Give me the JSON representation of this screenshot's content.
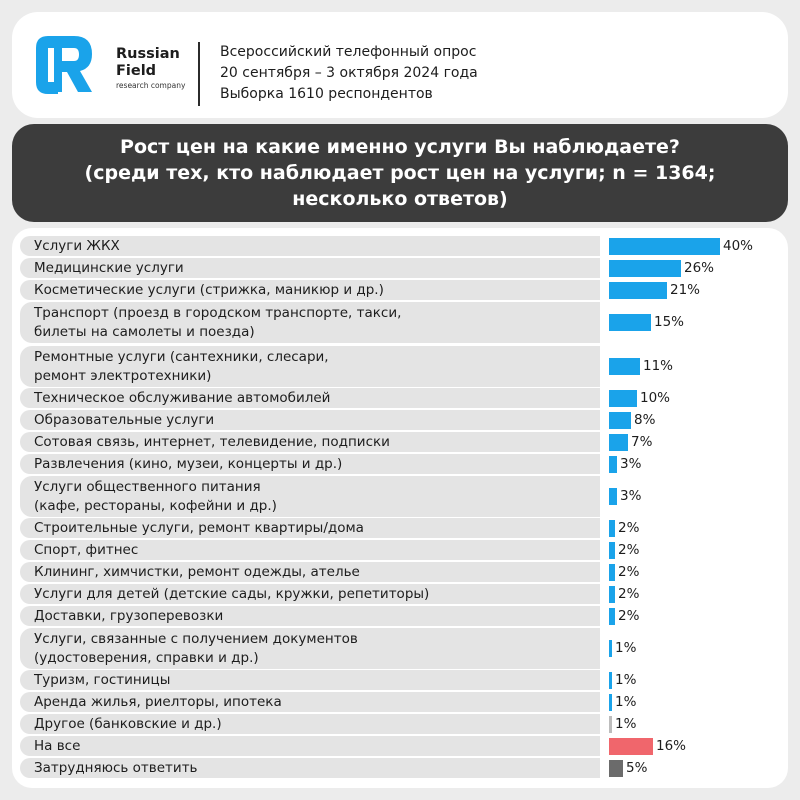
{
  "brand": {
    "name_line1": "Russian",
    "name_line2": "Field",
    "tagline": "research company"
  },
  "survey": {
    "line1": "Всероссийский телефонный опрос",
    "line2": "20 сентября – 3 октября 2024 года",
    "line3": "Выборка 1610 респондентов"
  },
  "title": {
    "line1": "Рост цен на какие именно услуги Вы наблюдаете?",
    "line2": "(среди тех, кто наблюдает рост цен на услуги; n = 1364;",
    "line3": "несколько ответов)"
  },
  "colors": {
    "default_bar": "#1aa3ea",
    "all_bar": "#f0666c",
    "hard_to_say_bar": "#6b6b6b",
    "other_bar": "#bdbdbd"
  },
  "chart_data": {
    "type": "bar",
    "orientation": "horizontal",
    "unit": "%",
    "xlim": [
      0,
      40
    ],
    "categories": [
      [
        "Услуги ЖКХ"
      ],
      [
        "Медицинские услуги"
      ],
      [
        "Косметические услуги (стрижка, маникюр и др.)"
      ],
      [
        "Транспорт (проезд в городском транспорте, такси,",
        "билеты на самолеты и поезда)"
      ],
      [
        "Ремонтные услуги (сантехники, слесари,",
        "ремонт электротехники)"
      ],
      [
        "Техническое обслуживание автомобилей"
      ],
      [
        "Образовательные услуги"
      ],
      [
        "Сотовая связь, интернет, телевидение, подписки"
      ],
      [
        "Развлечения (кино, музеи, концерты и др.)"
      ],
      [
        "Услуги общественного питания",
        "(кафе, рестораны, кофейни и др.)"
      ],
      [
        "Строительные услуги, ремонт квартиры/дома"
      ],
      [
        "Спорт, фитнес"
      ],
      [
        "Клининг, химчистки, ремонт одежды, ателье"
      ],
      [
        "Услуги для детей (детские сады, кружки, репетиторы)"
      ],
      [
        "Доставки, грузоперевозки"
      ],
      [
        "Услуги, связанные с получением документов",
        "(удостоверения, справки и др.)"
      ],
      [
        "Туризм, гостиницы"
      ],
      [
        "Аренда жилья, риелторы, ипотека"
      ],
      [
        "Другое (банковские и др.)"
      ],
      [
        "На все"
      ],
      [
        "Затрудняюсь ответить"
      ]
    ],
    "values": [
      40,
      26,
      21,
      15,
      11,
      10,
      8,
      7,
      3,
      3,
      2,
      2,
      2,
      2,
      2,
      1,
      1,
      1,
      1,
      16,
      5
    ],
    "labels": [
      "40%",
      "26%",
      "21%",
      "15%",
      "11%",
      "10%",
      "8%",
      "7%",
      "3%",
      "3%",
      "2%",
      "2%",
      "2%",
      "2%",
      "2%",
      "1%",
      "1%",
      "1%",
      "1%",
      "16%",
      "5%"
    ],
    "bar_color_keys": [
      "default_bar",
      "default_bar",
      "default_bar",
      "default_bar",
      "default_bar",
      "default_bar",
      "default_bar",
      "default_bar",
      "default_bar",
      "default_bar",
      "default_bar",
      "default_bar",
      "default_bar",
      "default_bar",
      "default_bar",
      "default_bar",
      "default_bar",
      "default_bar",
      "other_bar",
      "all_bar",
      "hard_to_say_bar"
    ]
  }
}
